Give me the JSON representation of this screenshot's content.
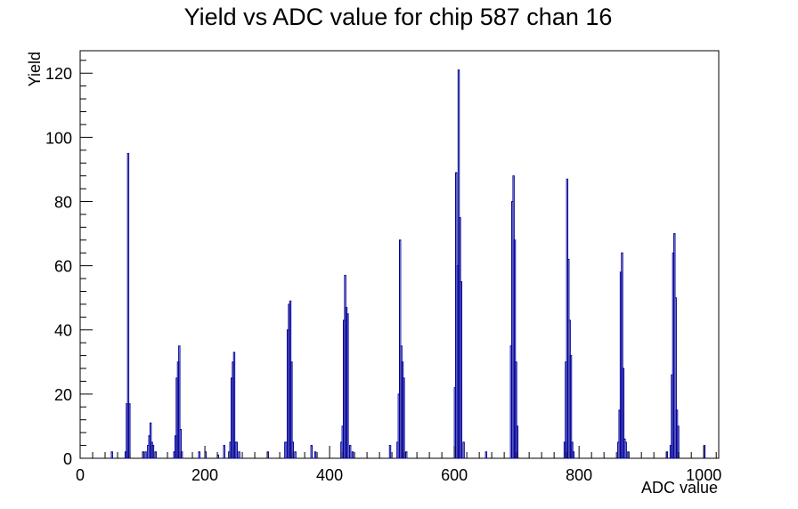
{
  "chart_data": {
    "type": "histogram",
    "title": "Yield vs ADC value for chip 587 chan 16",
    "xlabel": "ADC value",
    "ylabel": "Yield",
    "xlim": [
      0,
      1024
    ],
    "ylim": [
      0,
      127
    ],
    "x_ticks": [
      0,
      200,
      400,
      600,
      800,
      1000
    ],
    "y_ticks": [
      0,
      20,
      40,
      60,
      80,
      100,
      120
    ],
    "grid": false,
    "legend": "none",
    "bin_width": 2,
    "line_color": "#000099",
    "bins": [
      {
        "x": 50,
        "y": 2
      },
      {
        "x": 72,
        "y": 2
      },
      {
        "x": 74,
        "y": 17
      },
      {
        "x": 76,
        "y": 95
      },
      {
        "x": 78,
        "y": 17
      },
      {
        "x": 100,
        "y": 2
      },
      {
        "x": 104,
        "y": 2
      },
      {
        "x": 108,
        "y": 4
      },
      {
        "x": 110,
        "y": 7
      },
      {
        "x": 112,
        "y": 11
      },
      {
        "x": 114,
        "y": 5
      },
      {
        "x": 116,
        "y": 4
      },
      {
        "x": 120,
        "y": 2
      },
      {
        "x": 150,
        "y": 2
      },
      {
        "x": 152,
        "y": 7
      },
      {
        "x": 154,
        "y": 25
      },
      {
        "x": 156,
        "y": 30
      },
      {
        "x": 158,
        "y": 35
      },
      {
        "x": 160,
        "y": 9
      },
      {
        "x": 162,
        "y": 2
      },
      {
        "x": 190,
        "y": 2
      },
      {
        "x": 200,
        "y": 2
      },
      {
        "x": 220,
        "y": 1
      },
      {
        "x": 230,
        "y": 4
      },
      {
        "x": 238,
        "y": 2
      },
      {
        "x": 240,
        "y": 5
      },
      {
        "x": 242,
        "y": 25
      },
      {
        "x": 244,
        "y": 30
      },
      {
        "x": 246,
        "y": 33
      },
      {
        "x": 248,
        "y": 5
      },
      {
        "x": 250,
        "y": 5
      },
      {
        "x": 254,
        "y": 2
      },
      {
        "x": 300,
        "y": 2
      },
      {
        "x": 328,
        "y": 5
      },
      {
        "x": 330,
        "y": 5
      },
      {
        "x": 332,
        "y": 40
      },
      {
        "x": 334,
        "y": 48
      },
      {
        "x": 336,
        "y": 49
      },
      {
        "x": 338,
        "y": 30
      },
      {
        "x": 340,
        "y": 5
      },
      {
        "x": 344,
        "y": 2
      },
      {
        "x": 370,
        "y": 4
      },
      {
        "x": 376,
        "y": 2
      },
      {
        "x": 418,
        "y": 5
      },
      {
        "x": 420,
        "y": 10
      },
      {
        "x": 422,
        "y": 43
      },
      {
        "x": 424,
        "y": 57
      },
      {
        "x": 426,
        "y": 47
      },
      {
        "x": 428,
        "y": 45
      },
      {
        "x": 432,
        "y": 4
      },
      {
        "x": 436,
        "y": 2
      },
      {
        "x": 496,
        "y": 4
      },
      {
        "x": 508,
        "y": 5
      },
      {
        "x": 510,
        "y": 20
      },
      {
        "x": 512,
        "y": 68
      },
      {
        "x": 514,
        "y": 35
      },
      {
        "x": 516,
        "y": 30
      },
      {
        "x": 518,
        "y": 25
      },
      {
        "x": 522,
        "y": 2
      },
      {
        "x": 600,
        "y": 22
      },
      {
        "x": 602,
        "y": 89
      },
      {
        "x": 604,
        "y": 60
      },
      {
        "x": 606,
        "y": 121
      },
      {
        "x": 608,
        "y": 75
      },
      {
        "x": 610,
        "y": 55
      },
      {
        "x": 614,
        "y": 5
      },
      {
        "x": 650,
        "y": 2
      },
      {
        "x": 690,
        "y": 35
      },
      {
        "x": 692,
        "y": 80
      },
      {
        "x": 694,
        "y": 88
      },
      {
        "x": 696,
        "y": 68
      },
      {
        "x": 698,
        "y": 30
      },
      {
        "x": 700,
        "y": 10
      },
      {
        "x": 776,
        "y": 5
      },
      {
        "x": 778,
        "y": 30
      },
      {
        "x": 780,
        "y": 87
      },
      {
        "x": 782,
        "y": 62
      },
      {
        "x": 784,
        "y": 43
      },
      {
        "x": 786,
        "y": 32
      },
      {
        "x": 788,
        "y": 5
      },
      {
        "x": 790,
        "y": 2
      },
      {
        "x": 862,
        "y": 5
      },
      {
        "x": 864,
        "y": 15
      },
      {
        "x": 866,
        "y": 58
      },
      {
        "x": 868,
        "y": 64
      },
      {
        "x": 870,
        "y": 28
      },
      {
        "x": 872,
        "y": 6
      },
      {
        "x": 874,
        "y": 5
      },
      {
        "x": 878,
        "y": 2
      },
      {
        "x": 940,
        "y": 2
      },
      {
        "x": 946,
        "y": 4
      },
      {
        "x": 948,
        "y": 26
      },
      {
        "x": 950,
        "y": 64
      },
      {
        "x": 952,
        "y": 70
      },
      {
        "x": 954,
        "y": 50
      },
      {
        "x": 956,
        "y": 15
      },
      {
        "x": 958,
        "y": 10
      },
      {
        "x": 1000,
        "y": 4
      }
    ]
  }
}
